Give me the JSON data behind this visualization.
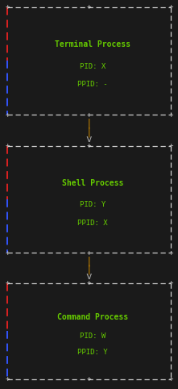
{
  "bg_color": "#1a1a1a",
  "border_color": "#cccccc",
  "left_bar_red": "#dd2222",
  "left_bar_blue": "#3355ff",
  "right_bar": "#cccccc",
  "arrow_color": "#cc8800",
  "arrow_v_color": "#aaaaaa",
  "text_color": "#66cc00",
  "font_family": "monospace",
  "boxes": [
    {
      "title": "Terminal Process",
      "pid": "PID: X",
      "ppid": "PPID: -"
    },
    {
      "title": "Shell Process",
      "pid": "PID: Y",
      "ppid": "PPID: X"
    },
    {
      "title": "Command Process",
      "pid": "PID: W",
      "ppid": "PPID: Y"
    }
  ],
  "figsize": [
    2.21,
    4.82
  ],
  "dpi": 100
}
